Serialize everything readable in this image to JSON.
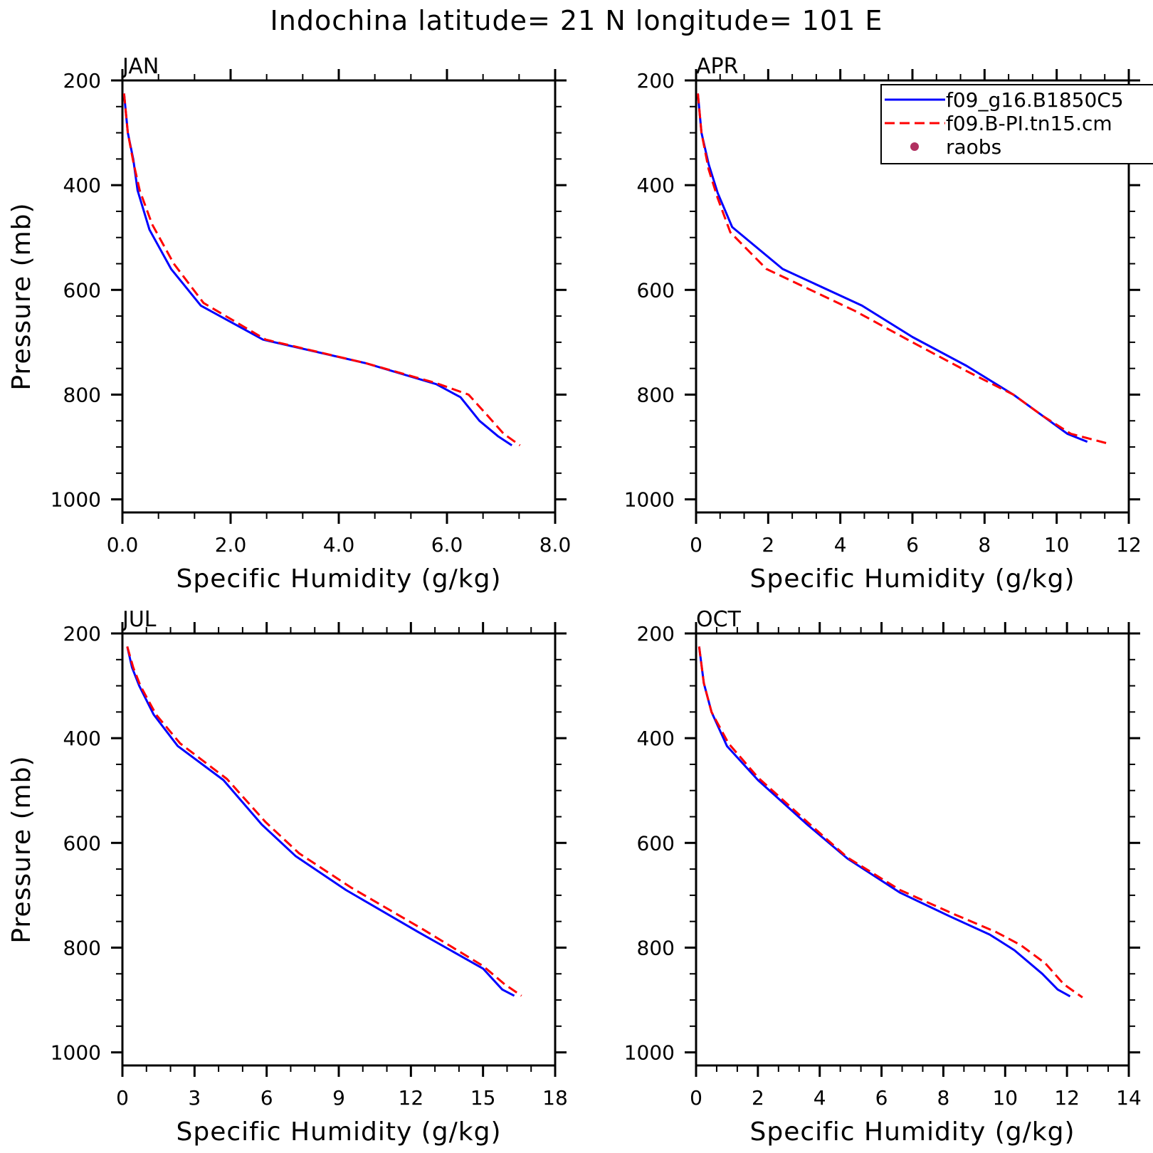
{
  "figure": {
    "title": "Indochina  latitude= 21 N longitude= 101 E"
  },
  "legend": {
    "entries": [
      {
        "label": "f09_g16.B1850C5",
        "color": "#0000ff",
        "style": "solid"
      },
      {
        "label": "f09.B-PI.tn15.cm",
        "color": "#ff0000",
        "style": "dashed"
      },
      {
        "label": "raobs",
        "color": "#b03060",
        "style": "dot"
      }
    ],
    "placement": "top-right of APR panel"
  },
  "chart_data": [
    {
      "type": "line",
      "panel_label": "JAN",
      "xlabel": "Specific Humidity (g/kg)",
      "ylabel": "Pressure (mb)",
      "xlim": [
        0,
        8
      ],
      "ylim": [
        200,
        1025
      ],
      "y_inverted": true,
      "xticks": [
        0,
        2,
        4,
        6,
        8
      ],
      "xtick_labels": [
        "0.0",
        "2.0",
        "4.0",
        "6.0",
        "8.0"
      ],
      "yticks": [
        200,
        400,
        600,
        800,
        1000
      ],
      "ytick_labels": [
        "200",
        "400",
        "600",
        "800",
        "1000"
      ],
      "series": [
        {
          "name": "f09_g16.B1850C5",
          "points": [
            [
              0.03,
              225
            ],
            [
              0.1,
              300
            ],
            [
              0.2,
              350
            ],
            [
              0.28,
              410
            ],
            [
              0.5,
              485
            ],
            [
              0.9,
              560
            ],
            [
              1.45,
              630
            ],
            [
              2.6,
              695
            ],
            [
              4.5,
              740
            ],
            [
              5.8,
              780
            ],
            [
              6.25,
              805
            ],
            [
              6.6,
              850
            ],
            [
              6.95,
              880
            ],
            [
              7.2,
              897
            ]
          ]
        },
        {
          "name": "f09.B-PI.tn15.cm",
          "points": [
            [
              0.03,
              225
            ],
            [
              0.1,
              300
            ],
            [
              0.2,
              355
            ],
            [
              0.32,
              410
            ],
            [
              0.55,
              475
            ],
            [
              0.95,
              550
            ],
            [
              1.5,
              625
            ],
            [
              2.65,
              695
            ],
            [
              4.5,
              740
            ],
            [
              5.8,
              778
            ],
            [
              6.4,
              800
            ],
            [
              6.75,
              840
            ],
            [
              7.05,
              875
            ],
            [
              7.35,
              897
            ]
          ]
        }
      ]
    },
    {
      "type": "line",
      "panel_label": "APR",
      "xlabel": "Specific Humidity (g/kg)",
      "ylabel": "Pressure (mb)",
      "xlim": [
        0,
        12
      ],
      "ylim": [
        200,
        1025
      ],
      "y_inverted": true,
      "xticks": [
        0,
        2,
        4,
        6,
        8,
        10,
        12
      ],
      "xtick_labels": [
        "0",
        "2",
        "4",
        "6",
        "8",
        "10",
        "12"
      ],
      "yticks": [
        200,
        400,
        600,
        800,
        1000
      ],
      "ytick_labels": [
        "200",
        "400",
        "600",
        "800",
        "1000"
      ],
      "series": [
        {
          "name": "f09_g16.B1850C5",
          "points": [
            [
              0.05,
              225
            ],
            [
              0.15,
              300
            ],
            [
              0.35,
              360
            ],
            [
              0.6,
              415
            ],
            [
              1.0,
              480
            ],
            [
              2.4,
              560
            ],
            [
              4.6,
              630
            ],
            [
              6.0,
              690
            ],
            [
              7.5,
              745
            ],
            [
              8.8,
              800
            ],
            [
              9.5,
              835
            ],
            [
              10.3,
              875
            ],
            [
              10.85,
              890
            ]
          ]
        },
        {
          "name": "f09.B-PI.tn15.cm",
          "points": [
            [
              0.05,
              225
            ],
            [
              0.15,
              300
            ],
            [
              0.35,
              370
            ],
            [
              0.6,
              425
            ],
            [
              0.95,
              490
            ],
            [
              1.95,
              560
            ],
            [
              4.4,
              640
            ],
            [
              6.0,
              700
            ],
            [
              7.5,
              755
            ],
            [
              8.8,
              800
            ],
            [
              9.6,
              840
            ],
            [
              10.4,
              875
            ],
            [
              11.4,
              893
            ]
          ]
        }
      ]
    },
    {
      "type": "line",
      "panel_label": "JUL",
      "xlabel": "Specific Humidity (g/kg)",
      "ylabel": "Pressure (mb)",
      "xlim": [
        0,
        18
      ],
      "ylim": [
        200,
        1025
      ],
      "y_inverted": true,
      "xticks": [
        0,
        3,
        6,
        9,
        12,
        15,
        18
      ],
      "xtick_labels": [
        "0",
        "3",
        "6",
        "9",
        "12",
        "15",
        "18"
      ],
      "yticks": [
        200,
        400,
        600,
        800,
        1000
      ],
      "ytick_labels": [
        "200",
        "400",
        "600",
        "800",
        "1000"
      ],
      "series": [
        {
          "name": "f09_g16.B1850C5",
          "points": [
            [
              0.2,
              225
            ],
            [
              0.4,
              265
            ],
            [
              0.7,
              300
            ],
            [
              1.3,
              355
            ],
            [
              2.3,
              415
            ],
            [
              4.2,
              480
            ],
            [
              5.8,
              565
            ],
            [
              7.2,
              625
            ],
            [
              9.3,
              690
            ],
            [
              12.3,
              770
            ],
            [
              15.0,
              840
            ],
            [
              15.8,
              880
            ],
            [
              16.3,
              892
            ]
          ]
        },
        {
          "name": "f09.B-PI.tn15.cm",
          "points": [
            [
              0.2,
              225
            ],
            [
              0.45,
              265
            ],
            [
              0.75,
              300
            ],
            [
              1.4,
              355
            ],
            [
              2.4,
              410
            ],
            [
              4.35,
              478
            ],
            [
              5.95,
              560
            ],
            [
              7.35,
              620
            ],
            [
              9.5,
              685
            ],
            [
              12.5,
              765
            ],
            [
              15.0,
              835
            ],
            [
              15.9,
              870
            ],
            [
              16.6,
              892
            ]
          ]
        }
      ]
    },
    {
      "type": "line",
      "panel_label": "OCT",
      "xlabel": "Specific Humidity (g/kg)",
      "ylabel": "Pressure (mb)",
      "xlim": [
        0,
        14
      ],
      "ylim": [
        200,
        1025
      ],
      "y_inverted": true,
      "xticks": [
        0,
        2,
        4,
        6,
        8,
        10,
        12,
        14
      ],
      "xtick_labels": [
        "0",
        "2",
        "4",
        "6",
        "8",
        "10",
        "12",
        "14"
      ],
      "yticks": [
        200,
        400,
        600,
        800,
        1000
      ],
      "ytick_labels": [
        "200",
        "400",
        "600",
        "800",
        "1000"
      ],
      "series": [
        {
          "name": "f09_g16.B1850C5",
          "points": [
            [
              0.1,
              225
            ],
            [
              0.25,
              295
            ],
            [
              0.5,
              350
            ],
            [
              1.0,
              415
            ],
            [
              2.0,
              480
            ],
            [
              3.6,
              565
            ],
            [
              4.9,
              630
            ],
            [
              6.6,
              695
            ],
            [
              8.2,
              740
            ],
            [
              9.5,
              775
            ],
            [
              10.3,
              805
            ],
            [
              11.2,
              850
            ],
            [
              11.7,
              880
            ],
            [
              12.1,
              893
            ]
          ]
        },
        {
          "name": "f09.B-PI.tn15.cm",
          "points": [
            [
              0.1,
              225
            ],
            [
              0.25,
              295
            ],
            [
              0.5,
              350
            ],
            [
              1.05,
              410
            ],
            [
              2.0,
              475
            ],
            [
              3.6,
              560
            ],
            [
              4.9,
              628
            ],
            [
              6.6,
              690
            ],
            [
              8.3,
              735
            ],
            [
              9.7,
              770
            ],
            [
              10.5,
              795
            ],
            [
              11.3,
              830
            ],
            [
              11.9,
              870
            ],
            [
              12.5,
              895
            ]
          ]
        }
      ]
    }
  ]
}
